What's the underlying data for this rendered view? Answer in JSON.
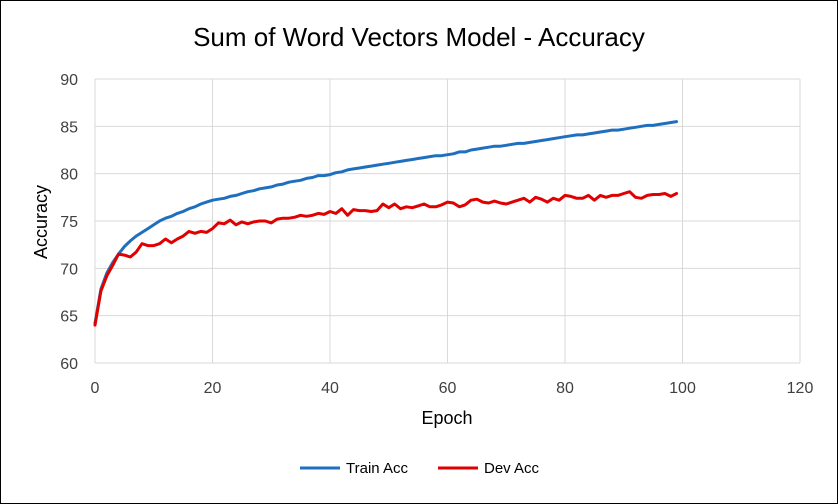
{
  "chart_data": {
    "type": "line",
    "title": "Sum of Word Vectors Model - Accuracy",
    "xlabel": "Epoch",
    "ylabel": "Accuracy",
    "xlim": [
      0,
      120
    ],
    "ylim": [
      60,
      90
    ],
    "xticks": [
      0,
      20,
      40,
      60,
      80,
      100,
      120
    ],
    "yticks": [
      60,
      65,
      70,
      75,
      80,
      85,
      90
    ],
    "grid": true,
    "legend_position": "bottom",
    "series": [
      {
        "name": "Train Acc",
        "color": "#1f6fbf",
        "x": [
          0,
          1,
          2,
          3,
          4,
          5,
          6,
          7,
          8,
          9,
          10,
          11,
          12,
          13,
          14,
          15,
          16,
          17,
          18,
          19,
          20,
          21,
          22,
          23,
          24,
          25,
          26,
          27,
          28,
          29,
          30,
          31,
          32,
          33,
          34,
          35,
          36,
          37,
          38,
          39,
          40,
          41,
          42,
          43,
          44,
          45,
          46,
          47,
          48,
          49,
          50,
          51,
          52,
          53,
          54,
          55,
          56,
          57,
          58,
          59,
          60,
          61,
          62,
          63,
          64,
          65,
          66,
          67,
          68,
          69,
          70,
          71,
          72,
          73,
          74,
          75,
          76,
          77,
          78,
          79,
          80,
          81,
          82,
          83,
          84,
          85,
          86,
          87,
          88,
          89,
          90,
          91,
          92,
          93,
          94,
          95,
          96,
          97,
          98,
          99
        ],
        "values": [
          64.2,
          67.8,
          69.5,
          70.6,
          71.5,
          72.3,
          72.9,
          73.4,
          73.8,
          74.2,
          74.6,
          75.0,
          75.3,
          75.5,
          75.8,
          76.0,
          76.3,
          76.5,
          76.8,
          77.0,
          77.2,
          77.3,
          77.4,
          77.6,
          77.7,
          77.9,
          78.1,
          78.2,
          78.4,
          78.5,
          78.6,
          78.8,
          78.9,
          79.1,
          79.2,
          79.3,
          79.5,
          79.6,
          79.8,
          79.8,
          79.9,
          80.1,
          80.2,
          80.4,
          80.5,
          80.6,
          80.7,
          80.8,
          80.9,
          81.0,
          81.1,
          81.2,
          81.3,
          81.4,
          81.5,
          81.6,
          81.7,
          81.8,
          81.9,
          81.9,
          82.0,
          82.1,
          82.3,
          82.3,
          82.5,
          82.6,
          82.7,
          82.8,
          82.9,
          82.9,
          83.0,
          83.1,
          83.2,
          83.2,
          83.3,
          83.4,
          83.5,
          83.6,
          83.7,
          83.8,
          83.9,
          84.0,
          84.1,
          84.1,
          84.2,
          84.3,
          84.4,
          84.5,
          84.6,
          84.6,
          84.7,
          84.8,
          84.9,
          85.0,
          85.1,
          85.1,
          85.2,
          85.3,
          85.4,
          85.5
        ]
      },
      {
        "name": "Dev Acc",
        "color": "#e00000",
        "x": [
          0,
          1,
          2,
          3,
          4,
          5,
          6,
          7,
          8,
          9,
          10,
          11,
          12,
          13,
          14,
          15,
          16,
          17,
          18,
          19,
          20,
          21,
          22,
          23,
          24,
          25,
          26,
          27,
          28,
          29,
          30,
          31,
          32,
          33,
          34,
          35,
          36,
          37,
          38,
          39,
          40,
          41,
          42,
          43,
          44,
          45,
          46,
          47,
          48,
          49,
          50,
          51,
          52,
          53,
          54,
          55,
          56,
          57,
          58,
          59,
          60,
          61,
          62,
          63,
          64,
          65,
          66,
          67,
          68,
          69,
          70,
          71,
          72,
          73,
          74,
          75,
          76,
          77,
          78,
          79,
          80,
          81,
          82,
          83,
          84,
          85,
          86,
          87,
          88,
          89,
          90,
          91,
          92,
          93,
          94,
          95,
          96,
          97,
          98,
          99
        ],
        "values": [
          64.0,
          67.6,
          69.2,
          70.3,
          71.5,
          71.4,
          71.2,
          71.7,
          72.6,
          72.4,
          72.4,
          72.6,
          73.1,
          72.7,
          73.1,
          73.4,
          73.9,
          73.7,
          73.9,
          73.8,
          74.2,
          74.8,
          74.7,
          75.1,
          74.6,
          74.9,
          74.7,
          74.9,
          75.0,
          75.0,
          74.8,
          75.2,
          75.3,
          75.3,
          75.4,
          75.6,
          75.5,
          75.6,
          75.8,
          75.7,
          76.0,
          75.8,
          76.3,
          75.6,
          76.2,
          76.1,
          76.1,
          76.0,
          76.1,
          76.8,
          76.4,
          76.8,
          76.3,
          76.5,
          76.4,
          76.6,
          76.8,
          76.5,
          76.5,
          76.7,
          77.0,
          76.9,
          76.5,
          76.7,
          77.2,
          77.3,
          77.0,
          76.9,
          77.1,
          76.9,
          76.8,
          77.0,
          77.2,
          77.4,
          77.0,
          77.5,
          77.3,
          77.0,
          77.4,
          77.2,
          77.7,
          77.6,
          77.4,
          77.4,
          77.7,
          77.2,
          77.7,
          77.5,
          77.7,
          77.7,
          77.9,
          78.1,
          77.5,
          77.4,
          77.7,
          77.8,
          77.8,
          77.9,
          77.6,
          77.9
        ]
      }
    ]
  }
}
